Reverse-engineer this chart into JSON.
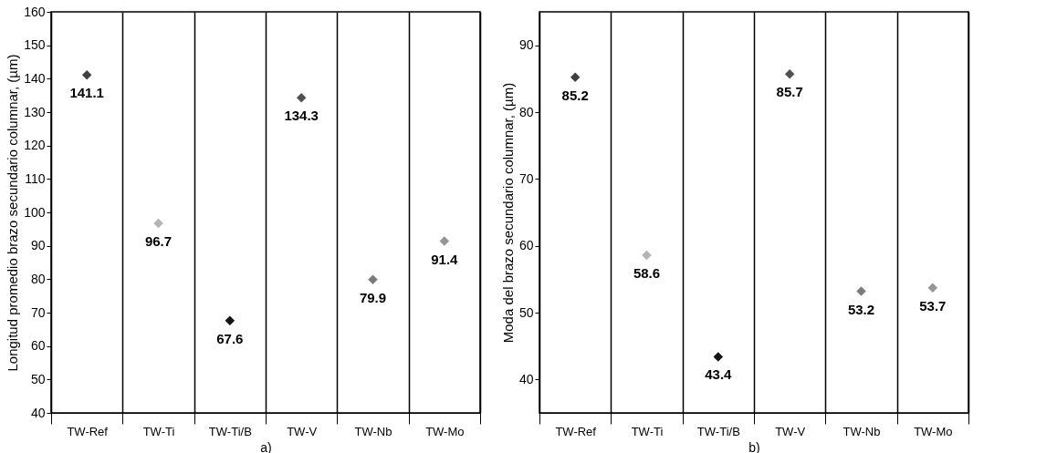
{
  "chart_data": [
    {
      "type": "scatter",
      "xlabel": "a)",
      "ylabel": "Longitud promedio brazo secundario columnar, (µm)",
      "categories": [
        "TW-Ref",
        "TW-Ti",
        "TW-Ti/B",
        "TW-V",
        "TW-Nb",
        "TW-Mo"
      ],
      "values": [
        141.1,
        96.7,
        67.6,
        134.3,
        79.9,
        91.4
      ],
      "colors": [
        "#404040",
        "#b4b4b4",
        "#141414",
        "#505050",
        "#7c7c7c",
        "#969696"
      ],
      "ylim": [
        40,
        160
      ],
      "yticks": [
        40,
        50,
        60,
        70,
        80,
        90,
        100,
        110,
        120,
        130,
        140,
        150,
        160
      ],
      "marker": "diamond",
      "data_labels": true,
      "grid": "x"
    },
    {
      "type": "scatter",
      "xlabel": "b)",
      "ylabel": "Moda del brazo secundario columnar, (µm)",
      "categories": [
        "TW-Ref",
        "TW-Ti",
        "TW-Ti/B",
        "TW-V",
        "TW-Nb",
        "TW-Mo"
      ],
      "values": [
        85.2,
        58.6,
        43.4,
        85.7,
        53.2,
        53.7
      ],
      "colors": [
        "#404040",
        "#b4b4b4",
        "#141414",
        "#505050",
        "#7c7c7c",
        "#969696"
      ],
      "ylim": [
        35,
        95
      ],
      "yticks": [
        40,
        50,
        60,
        70,
        80,
        90
      ],
      "marker": "diamond",
      "data_labels": true,
      "grid": "x"
    }
  ]
}
